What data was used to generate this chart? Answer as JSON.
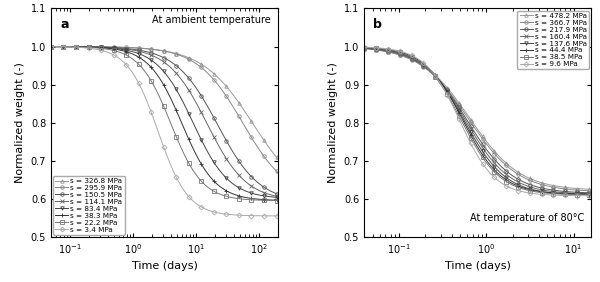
{
  "panel_a": {
    "title": "At ambient temperature",
    "label": "a",
    "xlabel": "Time (days)",
    "ylabel": "Normalized weight (-)",
    "xlim_log": [
      -1.3,
      2.3
    ],
    "ylim": [
      0.5,
      1.1
    ],
    "yticks": [
      0.5,
      0.6,
      0.7,
      0.8,
      0.9,
      1.0,
      1.1
    ],
    "series": [
      {
        "label": "s = 326.8 MPa",
        "marker": "^",
        "color": "#999999",
        "t0": 80,
        "k": 2.5,
        "ymin": 0.595
      },
      {
        "label": "s = 295.9 MPa",
        "marker": "o",
        "color": "#888888",
        "t0": 55,
        "k": 2.8,
        "ymin": 0.6
      },
      {
        "label": "s = 150.5 MPa",
        "marker": "o",
        "color": "#555555",
        "t0": 22,
        "k": 3.0,
        "ymin": 0.59
      },
      {
        "label": "s = 114.1 MPa",
        "marker": "x",
        "color": "#666666",
        "t0": 15,
        "k": 3.2,
        "ymin": 0.595
      },
      {
        "label": "s = 83.4 MPa",
        "marker": "v",
        "color": "#444444",
        "t0": 9,
        "k": 3.5,
        "ymin": 0.6
      },
      {
        "label": "s = 38.3 MPa",
        "marker": "+",
        "color": "#333333",
        "t0": 6,
        "k": 3.8,
        "ymin": 0.595
      },
      {
        "label": "s = 22.2 MPa",
        "marker": "s",
        "color": "#777777",
        "t0": 4,
        "k": 4.0,
        "ymin": 0.595
      },
      {
        "label": "s = 3.4 MPa",
        "marker": "D",
        "color": "#aaaaaa",
        "t0": 2.5,
        "k": 4.2,
        "ymin": 0.555
      }
    ]
  },
  "panel_b": {
    "title": "At temperature of 80°C",
    "label": "b",
    "xlabel": "Time (days)",
    "ylabel": "Normalized weight (-)",
    "xlim_log": [
      -1.4,
      1.2
    ],
    "ylim": [
      0.5,
      1.1
    ],
    "yticks": [
      0.5,
      0.6,
      0.7,
      0.8,
      0.9,
      1.0,
      1.1
    ],
    "series": [
      {
        "label": "s = 478.2 MPa",
        "marker": "^",
        "color": "#999999",
        "t0": 0.65,
        "k": 3.5,
        "ymin": 0.622
      },
      {
        "label": "s = 366.7 MPa",
        "marker": "o",
        "color": "#888888",
        "t0": 0.63,
        "k": 3.5,
        "ymin": 0.618
      },
      {
        "label": "s = 217.9 MPa",
        "marker": "o",
        "color": "#555555",
        "t0": 0.6,
        "k": 3.8,
        "ymin": 0.614
      },
      {
        "label": "s = 160.4 MPa",
        "marker": "x",
        "color": "#666666",
        "t0": 0.58,
        "k": 4.0,
        "ymin": 0.612
      },
      {
        "label": "s = 137.6 MPa",
        "marker": "v",
        "color": "#444444",
        "t0": 0.56,
        "k": 4.2,
        "ymin": 0.61
      },
      {
        "label": "s = 44.4 MPa",
        "marker": "+",
        "color": "#333333",
        "t0": 0.54,
        "k": 4.5,
        "ymin": 0.612
      },
      {
        "label": "s = 38.5 MPa",
        "marker": "s",
        "color": "#777777",
        "t0": 0.52,
        "k": 4.5,
        "ymin": 0.61
      },
      {
        "label": "s = 9.6 MPa",
        "marker": "D",
        "color": "#aaaaaa",
        "t0": 0.5,
        "k": 5.0,
        "ymin": 0.608
      }
    ]
  }
}
